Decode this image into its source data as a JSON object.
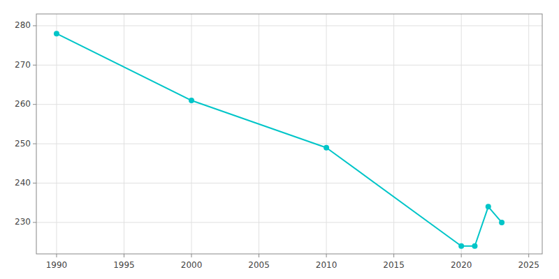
{
  "chart_data": {
    "type": "line",
    "x": [
      1990,
      2000,
      2010,
      2020,
      2021,
      2022,
      2023
    ],
    "values": [
      278,
      261,
      249,
      224,
      224,
      234,
      230
    ],
    "color": "#00C5C8",
    "marker": "circle",
    "xlim": [
      1988.5,
      2026
    ],
    "ylim": [
      222,
      283
    ],
    "xticks": [
      1990,
      1995,
      2000,
      2005,
      2010,
      2015,
      2020,
      2025
    ],
    "yticks": [
      230,
      240,
      250,
      260,
      270,
      280
    ],
    "grid": true
  }
}
